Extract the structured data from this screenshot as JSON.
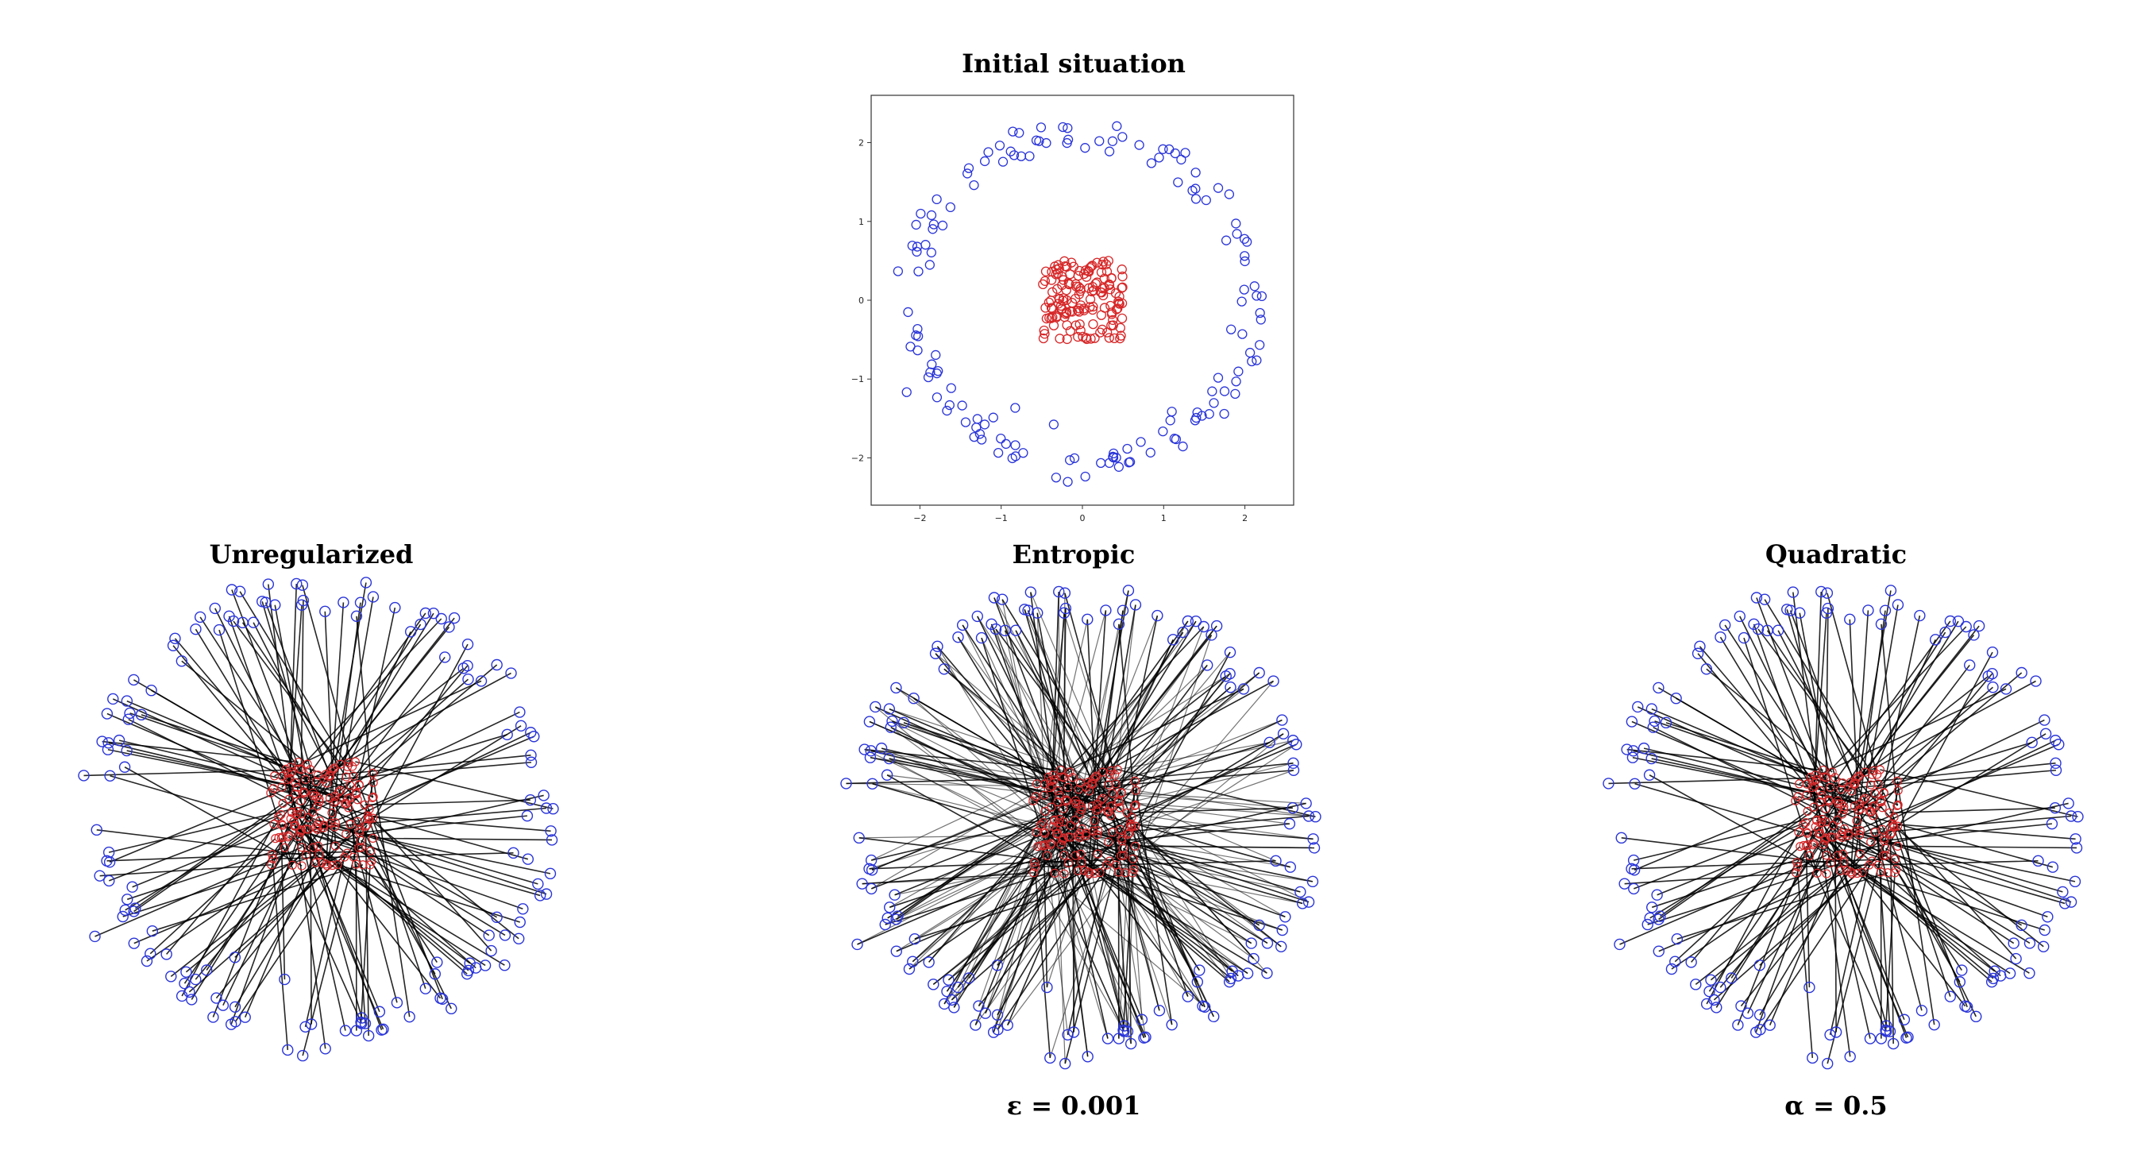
{
  "colors": {
    "source": "#d62728",
    "target": "#2a35d8",
    "lines": "#000000",
    "frame": "#333333"
  },
  "chart_data": [
    {
      "type": "scatter",
      "title": "Initial situation",
      "xlim": [
        -2.6,
        2.6
      ],
      "ylim": [
        -2.6,
        2.6
      ],
      "xticks": [
        -2,
        -1,
        0,
        1,
        2
      ],
      "yticks": [
        -2,
        -1,
        0,
        1,
        2
      ],
      "xtick_labels": [
        "−2",
        "−1",
        "0",
        "1",
        "2"
      ],
      "ytick_labels": [
        "−2",
        "−1",
        "0",
        "1",
        "2"
      ],
      "grid": false,
      "series": [
        {
          "marker": "open-circle",
          "color": "#d62728",
          "distribution": "uniform square [-0.5, 0.5] × [-0.5, 0.5]",
          "count": 150
        },
        {
          "marker": "open-circle",
          "color": "#2a35d8",
          "distribution": "noisy ring, radius ≈ 2.1",
          "count": 150
        }
      ]
    },
    {
      "type": "scatter",
      "title": "Unregularized",
      "caption": "",
      "plot": "transport plan: lines connecting red source points to blue ring points"
    },
    {
      "type": "scatter",
      "title": "Entropic",
      "caption": "ε = 0.001",
      "plot": "transport plan: lines connecting red source points to blue ring points"
    },
    {
      "type": "scatter",
      "title": "Quadratic",
      "caption": "α = 0.5",
      "plot": "transport plan: lines connecting red source points to blue ring points"
    }
  ]
}
